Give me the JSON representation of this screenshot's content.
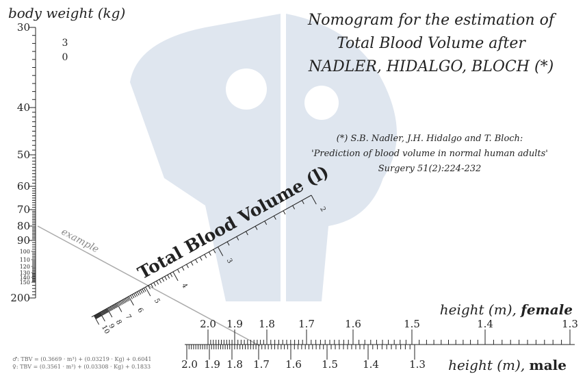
{
  "title": [
    "Nomogram for the estimation of",
    "Total Blood Volume after",
    "NADLER, HIDALGO, BLOCH (*)"
  ],
  "reference": [
    "(*) S.B. Nadler, J.H. Hidalgo and T. Bloch:",
    "'Prediction of blood volume in normal human adults'",
    "Surgery 51(2):224-232"
  ],
  "weight_scale": {
    "label": "body weight (kg)",
    "ticks": [
      "30",
      "40",
      "50",
      "60",
      "70",
      "80",
      "90",
      "100",
      "110",
      "120",
      "130",
      "140",
      "150",
      "200"
    ],
    "stray": [
      "3",
      "0"
    ]
  },
  "volume_scale": {
    "label": "Total Blood Volume (l)",
    "ticks": [
      "2",
      "3",
      "4",
      "5",
      "6",
      "7",
      "8",
      "9",
      "10"
    ]
  },
  "female_scale": {
    "label": "height (m),",
    "emphasis": "female",
    "ticks": [
      "2.0",
      "1.9",
      "1.8",
      "1.7",
      "1.6",
      "1.5",
      "1.4",
      "1.3"
    ]
  },
  "male_scale": {
    "label": "height (m),",
    "emphasis": "male",
    "ticks": [
      "2.0",
      "1.9",
      "1.8",
      "1.7",
      "1.6",
      "1.5",
      "1.4",
      "1.3"
    ]
  },
  "example": "example",
  "formulas": [
    "♂: TBV = (0.3669 · m³) + (0.03219 · Kg) + 0.6041",
    "♀: TBV = (0.3561 · m³) + (0.03308 · Kg) + 0.1833"
  ]
}
